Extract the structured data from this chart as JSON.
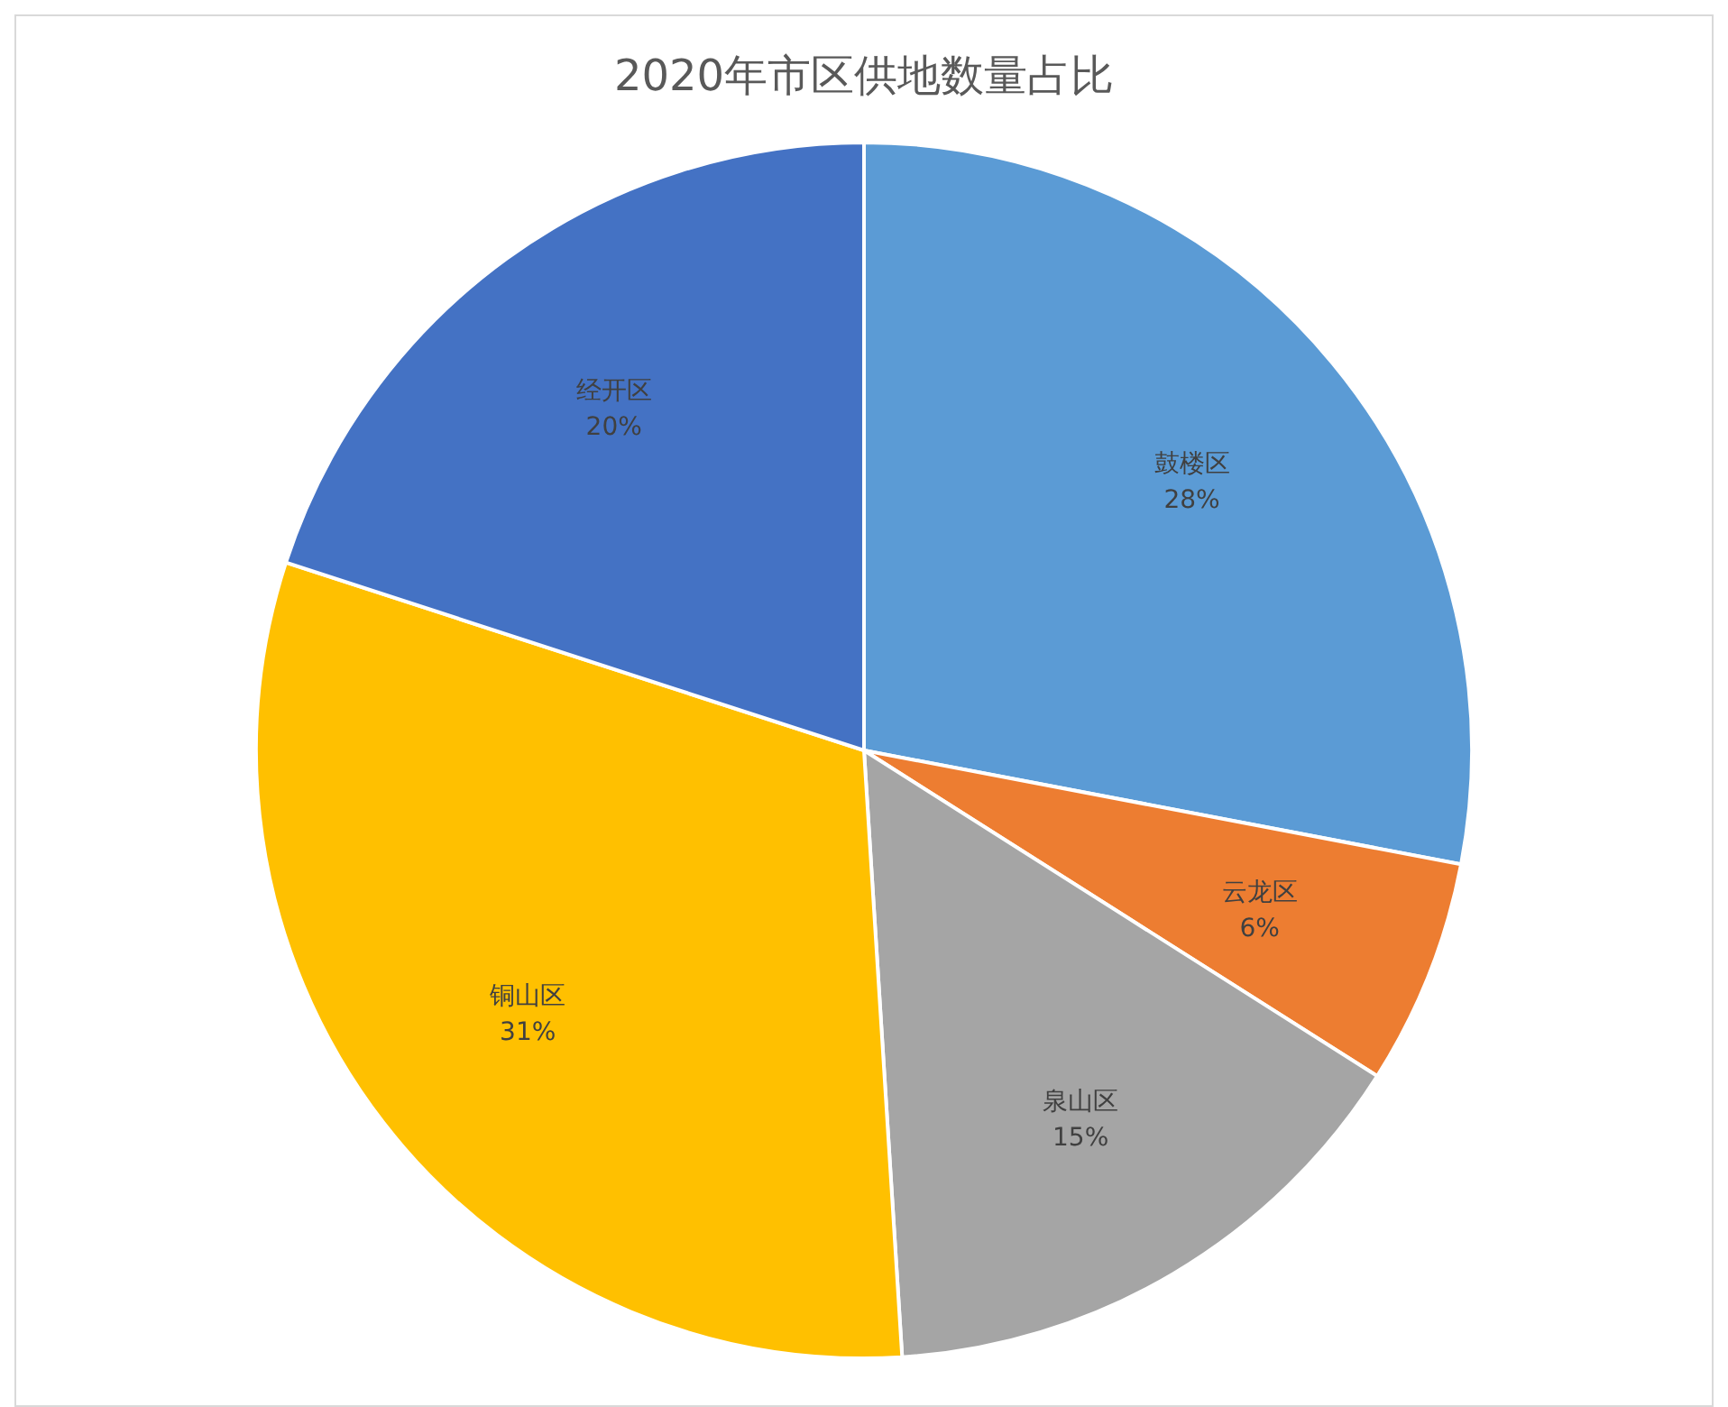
{
  "chart_data": {
    "type": "pie",
    "title": "2020年市区供地数量占比",
    "categories": [
      "鼓楼区",
      "云龙区",
      "泉山区",
      "铜山区",
      "经开区"
    ],
    "values": [
      28,
      6,
      15,
      31,
      20
    ],
    "colors": [
      "#5b9bd5",
      "#ed7d31",
      "#a5a5a5",
      "#ffc000",
      "#4472c4"
    ],
    "value_labels": [
      "28%",
      "6%",
      "15%",
      "31%",
      "20%"
    ],
    "legend": false
  }
}
